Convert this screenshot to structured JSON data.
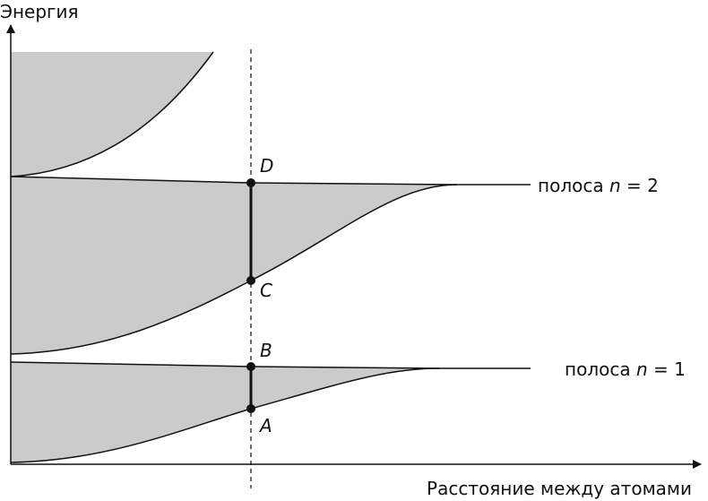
{
  "axes": {
    "y_label": "Энергия",
    "x_label": "Расстояние между атомами"
  },
  "bands": [
    {
      "prefix": "полоса",
      "variable": "n",
      "suffix": "= 2"
    },
    {
      "prefix": "полоса",
      "variable": "n",
      "suffix": "= 1"
    }
  ],
  "points": [
    "D",
    "C",
    "B",
    "A"
  ]
}
